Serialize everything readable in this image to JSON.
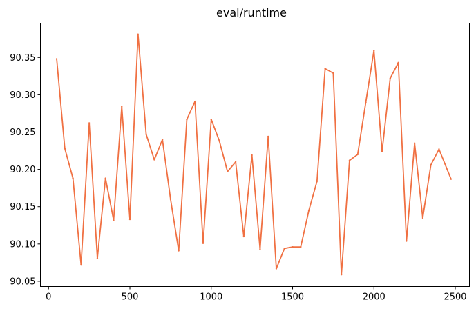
{
  "chart_data": {
    "type": "line",
    "title": "eval/runtime",
    "xlabel": "",
    "ylabel": "",
    "xlim": [
      -50,
      2587
    ],
    "ylim": [
      90.043,
      90.396
    ],
    "xticks": [
      0,
      500,
      1000,
      1500,
      2000,
      2500
    ],
    "xtick_labels": [
      "0",
      "500",
      "1000",
      "1500",
      "2000",
      "2500"
    ],
    "yticks": [
      90.05,
      90.1,
      90.15,
      90.2,
      90.25,
      90.3,
      90.35
    ],
    "ytick_labels": [
      "90.05",
      "90.10",
      "90.15",
      "90.20",
      "90.25",
      "90.30",
      "90.35"
    ],
    "grid": false,
    "legend": "none",
    "series": [
      {
        "color": "#f07042",
        "x": [
          50,
          100,
          150,
          200,
          250,
          300,
          350,
          400,
          450,
          500,
          550,
          600,
          650,
          700,
          750,
          800,
          850,
          900,
          950,
          1000,
          1050,
          1100,
          1150,
          1200,
          1250,
          1300,
          1350,
          1400,
          1450,
          1500,
          1550,
          1600,
          1650,
          1700,
          1750,
          1800,
          1850,
          1900,
          1950,
          2000,
          2050,
          2100,
          2150,
          2200,
          2250,
          2300,
          2350,
          2400,
          2474
        ],
        "y": [
          90.348,
          90.228,
          90.188,
          90.072,
          90.262,
          90.081,
          90.188,
          90.132,
          90.284,
          90.133,
          90.381,
          90.247,
          90.213,
          90.24,
          90.16,
          90.091,
          90.267,
          90.291,
          90.101,
          90.267,
          90.238,
          90.197,
          90.21,
          90.11,
          90.219,
          90.093,
          90.244,
          90.067,
          90.094,
          90.096,
          90.096,
          90.145,
          90.184,
          90.335,
          90.329,
          90.059,
          90.212,
          90.22,
          90.29,
          90.359,
          90.224,
          90.322,
          90.343,
          90.104,
          90.235,
          90.135,
          90.206,
          90.227,
          90.187
        ]
      }
    ]
  }
}
